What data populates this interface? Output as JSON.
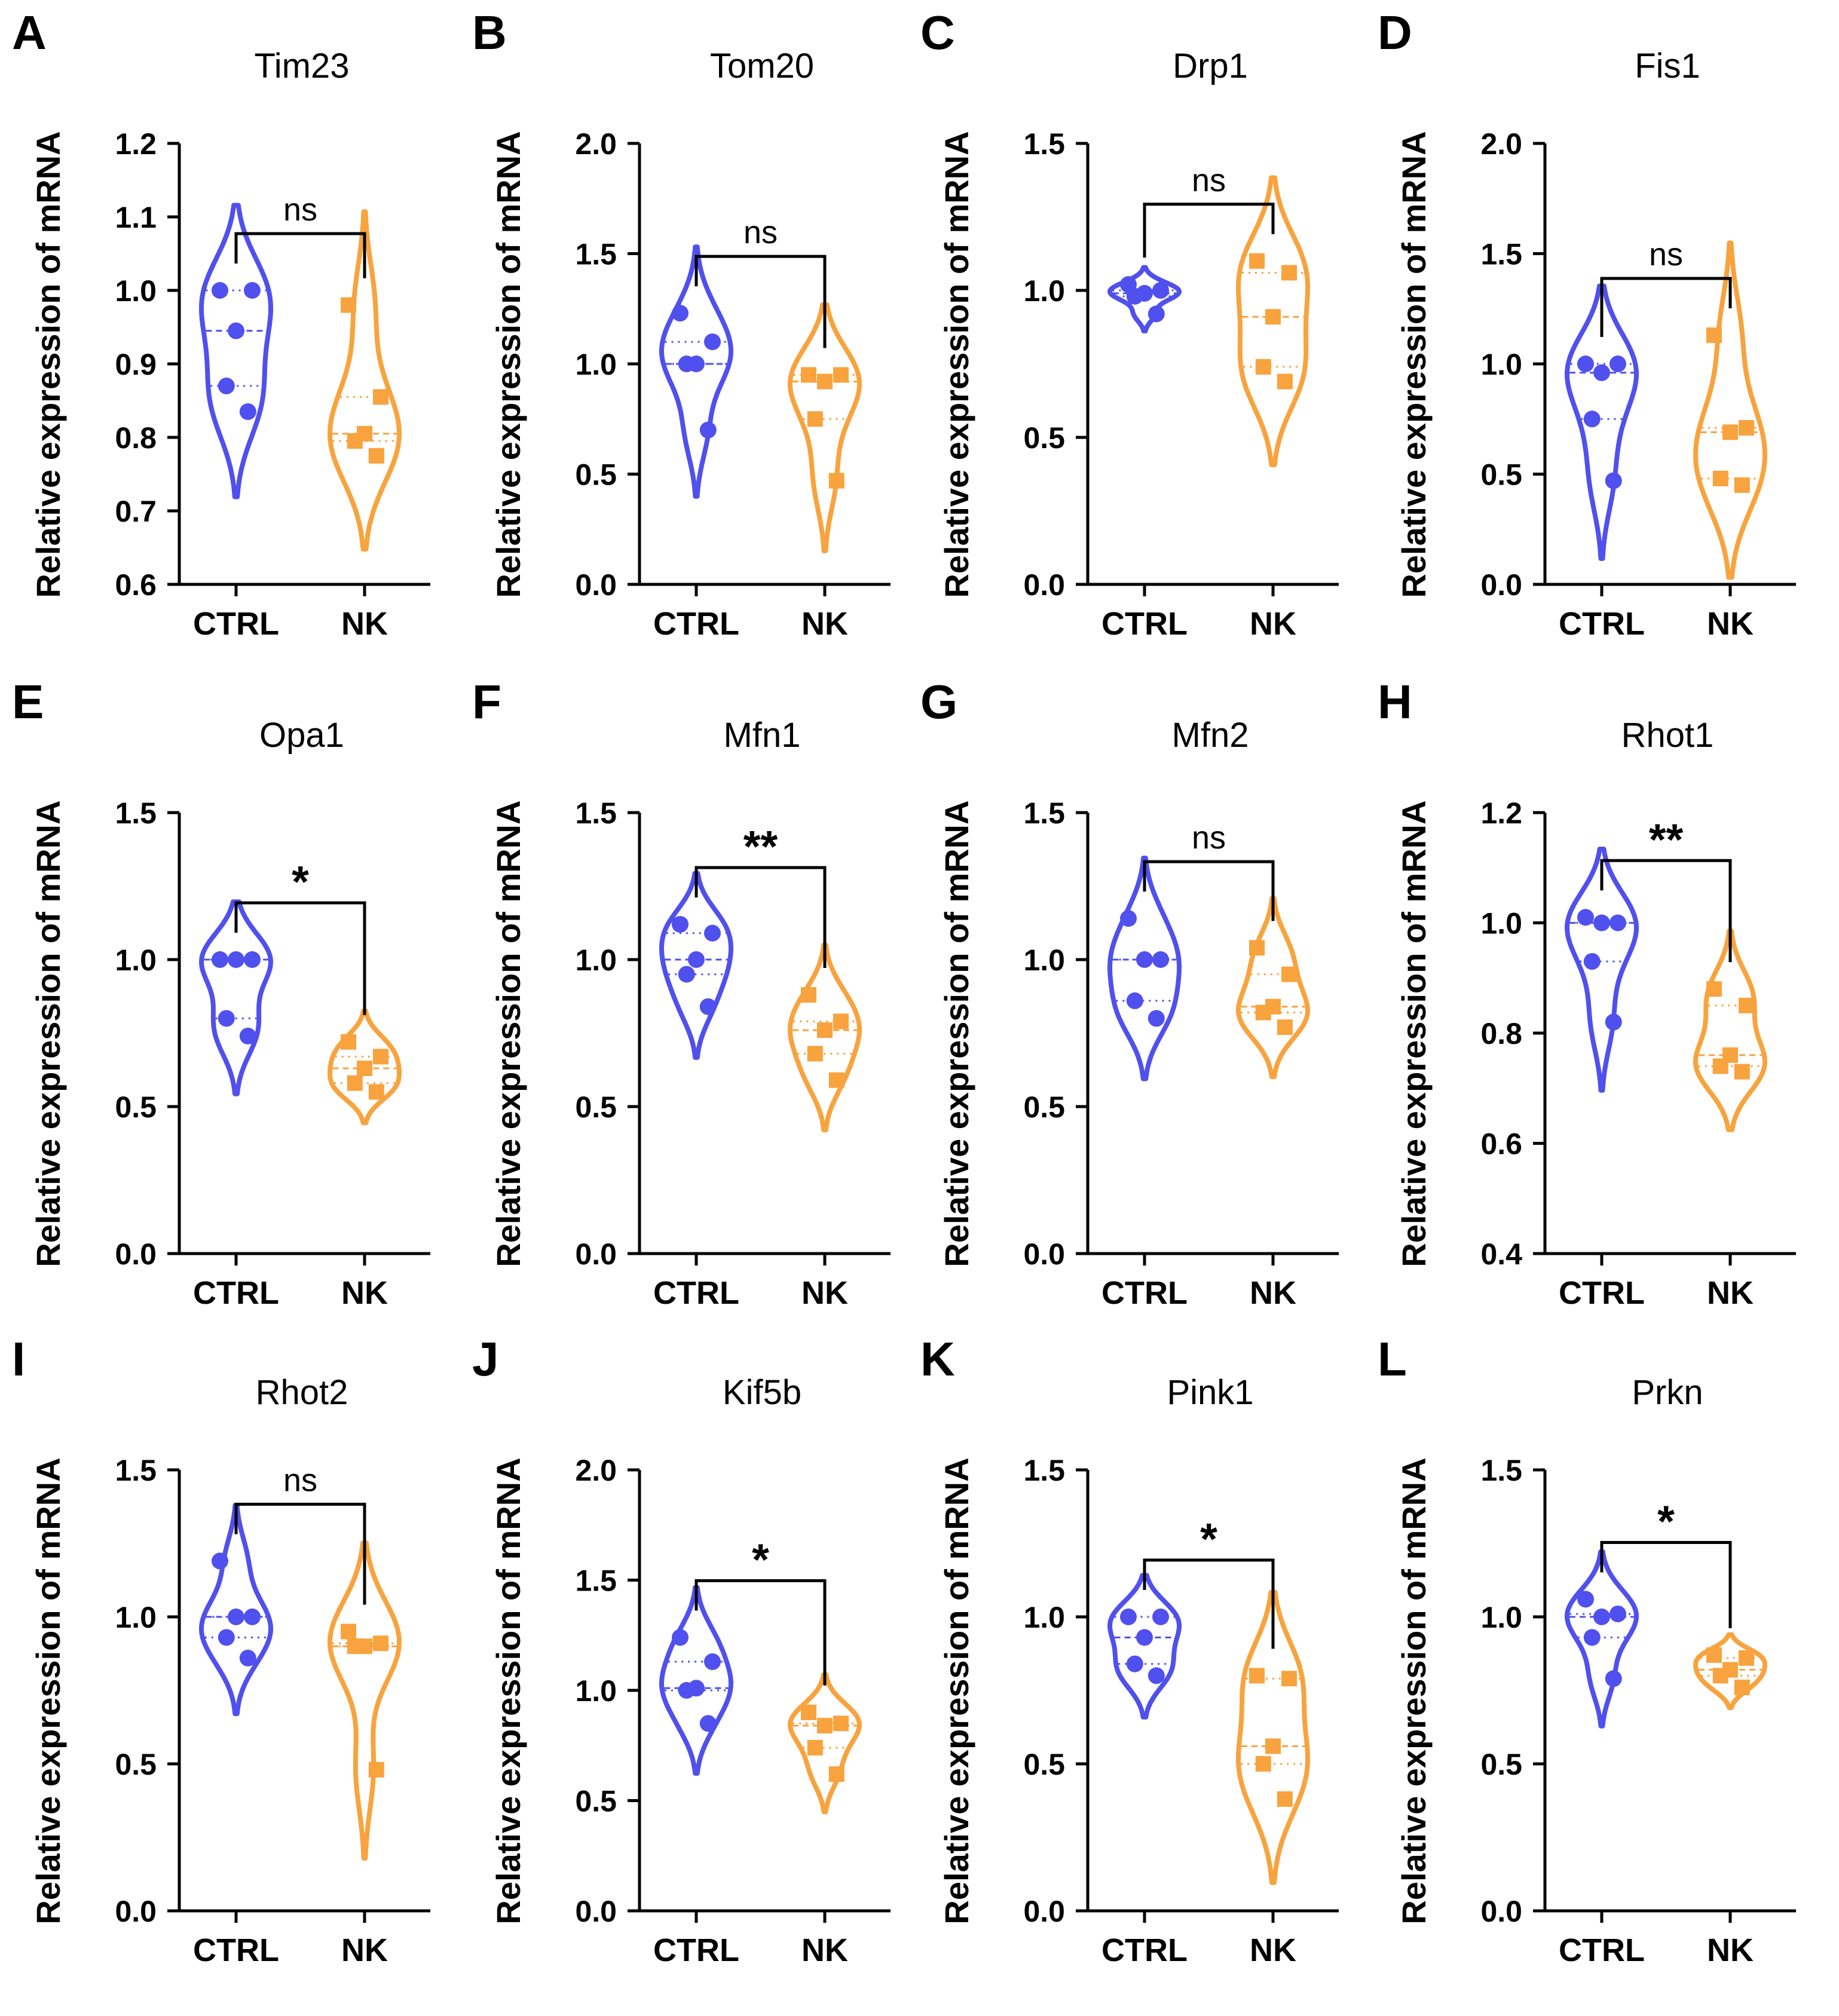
{
  "chart_data": [
    {
      "panel": "A",
      "type": "violin",
      "title": "Tim23",
      "ylabel": "Relative expression of mRNA",
      "ylim": [
        0.6,
        1.2
      ],
      "yticks": [
        0.6,
        0.7,
        0.8,
        0.9,
        1.0,
        1.1,
        1.2
      ],
      "categories": [
        "CTRL",
        "NK"
      ],
      "series": [
        {
          "name": "CTRL",
          "color": "#5050EE",
          "marker": "circle",
          "values": [
            1.0,
            1.0,
            0.945,
            0.87,
            0.835
          ]
        },
        {
          "name": "NK",
          "color": "#F8A33E",
          "marker": "square",
          "values": [
            0.98,
            0.855,
            0.805,
            0.795,
            0.775
          ]
        }
      ],
      "significance": "ns"
    },
    {
      "panel": "B",
      "type": "violin",
      "title": "Tom20",
      "ylabel": "Relative expression of mRNA",
      "ylim": [
        0.0,
        2.0
      ],
      "yticks": [
        0.0,
        0.5,
        1.0,
        1.5,
        2.0
      ],
      "categories": [
        "CTRL",
        "NK"
      ],
      "series": [
        {
          "name": "CTRL",
          "color": "#5050EE",
          "marker": "circle",
          "values": [
            1.23,
            1.1,
            1.0,
            1.0,
            0.7
          ]
        },
        {
          "name": "NK",
          "color": "#F8A33E",
          "marker": "square",
          "values": [
            0.95,
            0.95,
            0.92,
            0.75,
            0.47
          ]
        }
      ],
      "significance": "ns"
    },
    {
      "panel": "C",
      "type": "violin",
      "title": "Drp1",
      "ylabel": "Relative expression of mRNA",
      "ylim": [
        0.0,
        1.5
      ],
      "yticks": [
        0.0,
        0.5,
        1.0,
        1.5
      ],
      "categories": [
        "CTRL",
        "NK"
      ],
      "series": [
        {
          "name": "CTRL",
          "color": "#5050EE",
          "marker": "circle",
          "values": [
            1.02,
            1.0,
            0.99,
            0.98,
            0.92
          ]
        },
        {
          "name": "NK",
          "color": "#F8A33E",
          "marker": "square",
          "values": [
            1.1,
            1.06,
            0.91,
            0.74,
            0.69
          ]
        }
      ],
      "significance": "ns"
    },
    {
      "panel": "D",
      "type": "violin",
      "title": "Fis1",
      "ylabel": "Relative expression of mRNA",
      "ylim": [
        0.0,
        2.0
      ],
      "yticks": [
        0.0,
        0.5,
        1.0,
        1.5,
        2.0
      ],
      "categories": [
        "CTRL",
        "NK"
      ],
      "series": [
        {
          "name": "CTRL",
          "color": "#5050EE",
          "marker": "circle",
          "values": [
            1.0,
            1.0,
            0.96,
            0.75,
            0.47
          ]
        },
        {
          "name": "NK",
          "color": "#F8A33E",
          "marker": "square",
          "values": [
            1.13,
            0.71,
            0.69,
            0.48,
            0.45
          ]
        }
      ],
      "significance": "ns"
    },
    {
      "panel": "E",
      "type": "violin",
      "title": "Opa1",
      "ylabel": "Relative expression of mRNA",
      "ylim": [
        0.0,
        1.5
      ],
      "yticks": [
        0.0,
        0.5,
        1.0,
        1.5
      ],
      "categories": [
        "CTRL",
        "NK"
      ],
      "series": [
        {
          "name": "CTRL",
          "color": "#5050EE",
          "marker": "circle",
          "values": [
            1.0,
            1.0,
            1.0,
            0.8,
            0.74
          ]
        },
        {
          "name": "NK",
          "color": "#F8A33E",
          "marker": "square",
          "values": [
            0.72,
            0.67,
            0.63,
            0.58,
            0.55
          ]
        }
      ],
      "significance": "*"
    },
    {
      "panel": "F",
      "type": "violin",
      "title": "Mfn1",
      "ylabel": "Relative expression of mRNA",
      "ylim": [
        0.0,
        1.5
      ],
      "yticks": [
        0.0,
        0.5,
        1.0,
        1.5
      ],
      "categories": [
        "CTRL",
        "NK"
      ],
      "series": [
        {
          "name": "CTRL",
          "color": "#5050EE",
          "marker": "circle",
          "values": [
            1.12,
            1.09,
            1.0,
            0.95,
            0.84
          ]
        },
        {
          "name": "NK",
          "color": "#F8A33E",
          "marker": "square",
          "values": [
            0.88,
            0.79,
            0.76,
            0.68,
            0.59
          ]
        }
      ],
      "significance": "**"
    },
    {
      "panel": "G",
      "type": "violin",
      "title": "Mfn2",
      "ylabel": "Relative expression of mRNA",
      "ylim": [
        0.0,
        1.5
      ],
      "yticks": [
        0.0,
        0.5,
        1.0,
        1.5
      ],
      "categories": [
        "CTRL",
        "NK"
      ],
      "series": [
        {
          "name": "CTRL",
          "color": "#5050EE",
          "marker": "circle",
          "values": [
            1.14,
            1.0,
            1.0,
            0.86,
            0.8
          ]
        },
        {
          "name": "NK",
          "color": "#F8A33E",
          "marker": "square",
          "values": [
            1.04,
            0.95,
            0.84,
            0.82,
            0.77
          ]
        }
      ],
      "significance": "ns"
    },
    {
      "panel": "H",
      "type": "violin",
      "title": "Rhot1",
      "ylabel": "Relative expression of mRNA",
      "ylim": [
        0.4,
        1.2
      ],
      "yticks": [
        0.4,
        0.6,
        0.8,
        1.0,
        1.2
      ],
      "categories": [
        "CTRL",
        "NK"
      ],
      "series": [
        {
          "name": "CTRL",
          "color": "#5050EE",
          "marker": "circle",
          "values": [
            1.01,
            1.0,
            1.0,
            0.93,
            0.82
          ]
        },
        {
          "name": "NK",
          "color": "#F8A33E",
          "marker": "square",
          "values": [
            0.88,
            0.85,
            0.76,
            0.74,
            0.73
          ]
        }
      ],
      "significance": "**"
    },
    {
      "panel": "I",
      "type": "violin",
      "title": "Rhot2",
      "ylabel": "Relative expression of mRNA",
      "ylim": [
        0.0,
        1.5
      ],
      "yticks": [
        0.0,
        0.5,
        1.0,
        1.5
      ],
      "categories": [
        "CTRL",
        "NK"
      ],
      "series": [
        {
          "name": "CTRL",
          "color": "#5050EE",
          "marker": "circle",
          "values": [
            1.19,
            1.0,
            1.0,
            0.93,
            0.86
          ]
        },
        {
          "name": "NK",
          "color": "#F8A33E",
          "marker": "square",
          "values": [
            0.95,
            0.91,
            0.9,
            0.9,
            0.48
          ]
        }
      ],
      "significance": "ns"
    },
    {
      "panel": "J",
      "type": "violin",
      "title": "Kif5b",
      "ylabel": "Relative expression of mRNA",
      "ylim": [
        0.0,
        2.0
      ],
      "yticks": [
        0.0,
        0.5,
        1.0,
        1.5,
        2.0
      ],
      "categories": [
        "CTRL",
        "NK"
      ],
      "series": [
        {
          "name": "CTRL",
          "color": "#5050EE",
          "marker": "circle",
          "values": [
            1.24,
            1.13,
            1.01,
            1.0,
            0.85
          ]
        },
        {
          "name": "NK",
          "color": "#F8A33E",
          "marker": "square",
          "values": [
            0.9,
            0.85,
            0.84,
            0.74,
            0.62
          ]
        }
      ],
      "significance": "*"
    },
    {
      "panel": "K",
      "type": "violin",
      "title": "Pink1",
      "ylabel": "Relative expression of mRNA",
      "ylim": [
        0.0,
        1.5
      ],
      "yticks": [
        0.0,
        0.5,
        1.0,
        1.5
      ],
      "categories": [
        "CTRL",
        "NK"
      ],
      "series": [
        {
          "name": "CTRL",
          "color": "#5050EE",
          "marker": "circle",
          "values": [
            1.0,
            1.0,
            0.93,
            0.84,
            0.8
          ]
        },
        {
          "name": "NK",
          "color": "#F8A33E",
          "marker": "square",
          "values": [
            0.8,
            0.79,
            0.56,
            0.5,
            0.38
          ]
        }
      ],
      "significance": "*"
    },
    {
      "panel": "L",
      "type": "violin",
      "title": "Prkn",
      "ylabel": "Relative expression of mRNA",
      "ylim": [
        0.0,
        1.5
      ],
      "yticks": [
        0.0,
        0.5,
        1.0,
        1.5
      ],
      "categories": [
        "CTRL",
        "NK"
      ],
      "series": [
        {
          "name": "CTRL",
          "color": "#5050EE",
          "marker": "circle",
          "values": [
            1.06,
            1.01,
            1.0,
            0.93,
            0.79
          ]
        },
        {
          "name": "NK",
          "color": "#F8A33E",
          "marker": "square",
          "values": [
            0.87,
            0.86,
            0.82,
            0.8,
            0.76
          ]
        }
      ],
      "significance": "*"
    }
  ]
}
